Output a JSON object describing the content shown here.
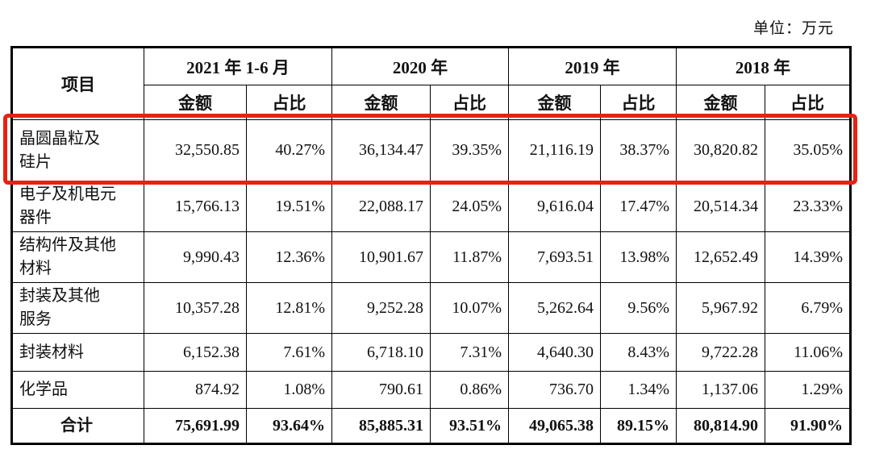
{
  "unit_label": "单位：万元",
  "highlight_color": "#e42313",
  "table": {
    "item_header": "项目",
    "col_groups": [
      {
        "label": "2021 年 1-6 月"
      },
      {
        "label": "2020 年"
      },
      {
        "label": "2019 年"
      },
      {
        "label": "2018 年"
      }
    ],
    "sub_headers": {
      "amount": "金额",
      "ratio": "占比"
    },
    "rows": [
      {
        "label": "晶圆晶粒及硅片",
        "label_lines": [
          "晶圆晶粒及",
          "硅片"
        ],
        "highlighted": true,
        "values": [
          "32,550.85",
          "40.27%",
          "36,134.47",
          "39.35%",
          "21,116.19",
          "38.37%",
          "30,820.82",
          "35.05%"
        ]
      },
      {
        "label": "电子及机电元器件",
        "label_lines": [
          "电子及机电元",
          "器件"
        ],
        "highlighted": false,
        "values": [
          "15,766.13",
          "19.51%",
          "22,088.17",
          "24.05%",
          "9,616.04",
          "17.47%",
          "20,514.34",
          "23.33%"
        ]
      },
      {
        "label": "结构件及其他材料",
        "label_lines": [
          "结构件及其他",
          "材料"
        ],
        "highlighted": false,
        "values": [
          "9,990.43",
          "12.36%",
          "10,901.67",
          "11.87%",
          "7,693.51",
          "13.98%",
          "12,652.49",
          "14.39%"
        ]
      },
      {
        "label": "封装及其他服务",
        "label_lines": [
          "封装及其他",
          "服务"
        ],
        "highlighted": false,
        "values": [
          "10,357.28",
          "12.81%",
          "9,252.28",
          "10.07%",
          "5,262.64",
          "9.56%",
          "5,967.92",
          "6.79%"
        ]
      },
      {
        "label": "封装材料",
        "label_lines": [
          "封装材料"
        ],
        "highlighted": false,
        "values": [
          "6,152.38",
          "7.61%",
          "6,718.10",
          "7.31%",
          "4,640.30",
          "8.43%",
          "9,722.28",
          "11.06%"
        ]
      },
      {
        "label": "化学品",
        "label_lines": [
          "化学品"
        ],
        "highlighted": false,
        "values": [
          "874.92",
          "1.08%",
          "790.61",
          "0.86%",
          "736.70",
          "1.34%",
          "1,137.06",
          "1.29%"
        ]
      }
    ],
    "total_row": {
      "label": "合计",
      "label_lines": [
        "合计"
      ],
      "values": [
        "75,691.99",
        "93.64%",
        "85,885.31",
        "93.51%",
        "49,065.38",
        "89.15%",
        "80,814.90",
        "91.90%"
      ]
    }
  }
}
